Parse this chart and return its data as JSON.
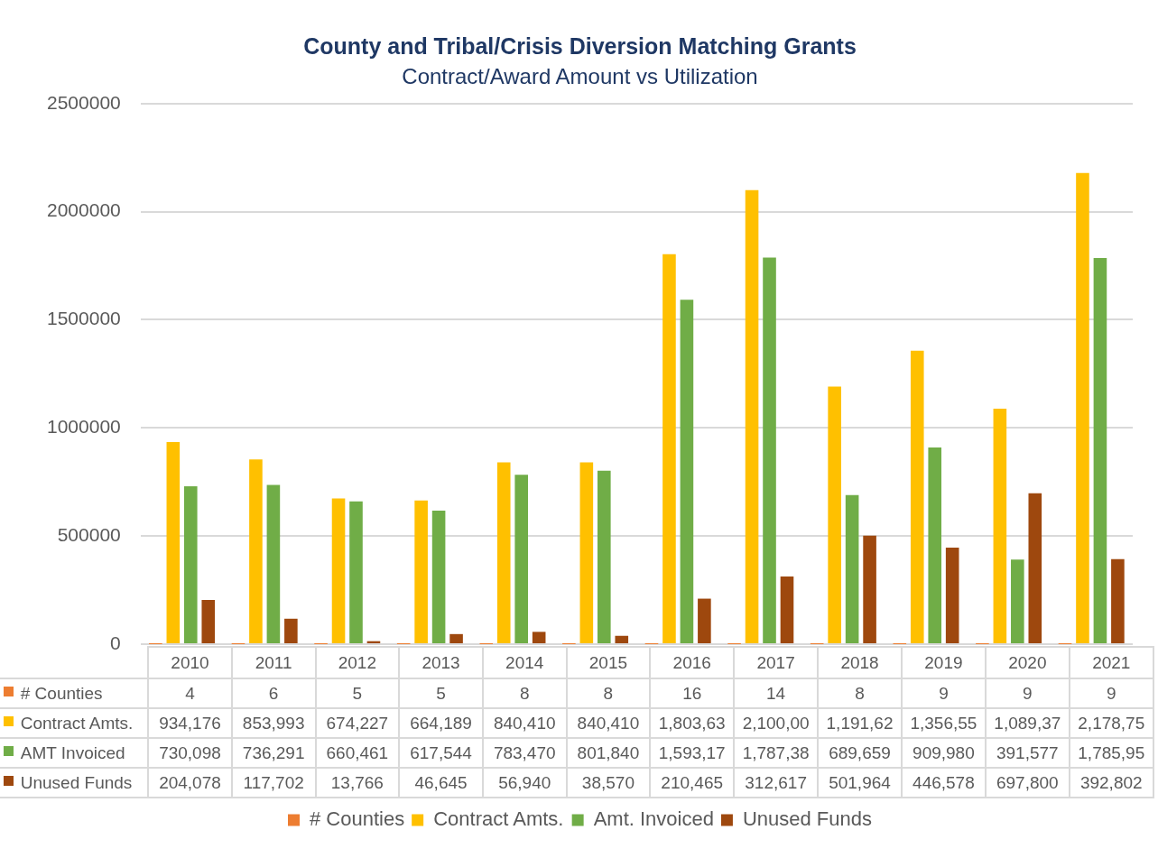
{
  "chart_data": {
    "type": "bar",
    "title": "County and Tribal/Crisis Diversion Matching Grants",
    "subtitle": "Contract/Award Amount vs Utilization",
    "categories": [
      "2010",
      "2011",
      "2012",
      "2013",
      "2014",
      "2015",
      "2016",
      "2017",
      "2018",
      "2019",
      "2020",
      "2021"
    ],
    "series": [
      {
        "name": "# Counties",
        "color": "#ed7d31",
        "values": [
          4,
          6,
          5,
          5,
          8,
          8,
          16,
          14,
          8,
          9,
          9,
          9
        ],
        "value_labels": [
          "4",
          "6",
          "5",
          "5",
          "8",
          "8",
          "16",
          "14",
          "8",
          "9",
          "9",
          "9"
        ]
      },
      {
        "name": "Contract Amts.",
        "color": "#ffc000",
        "values": [
          934176,
          853993,
          674227,
          664189,
          840410,
          840410,
          1803630,
          2100000,
          1191620,
          1356550,
          1089370,
          2178750
        ],
        "value_labels": [
          "934,176",
          "853,993",
          "674,227",
          "664,189",
          "840,410",
          "840,410",
          "1,803,63",
          "2,100,00",
          "1,191,62",
          "1,356,55",
          "1,089,37",
          "2,178,75"
        ]
      },
      {
        "name": "Amt. Invoiced",
        "color": "#70ad47",
        "values": [
          730098,
          736291,
          660461,
          617544,
          783470,
          801840,
          1593170,
          1787380,
          689659,
          909980,
          391577,
          1785950
        ],
        "value_labels": [
          "730,098",
          "736,291",
          "660,461",
          "617,544",
          "783,470",
          "801,840",
          "1,593,17",
          "1,787,38",
          "689,659",
          "909,980",
          "391,577",
          "1,785,95"
        ]
      },
      {
        "name": "Unused Funds",
        "color": "#9e480e",
        "values": [
          204078,
          117702,
          13766,
          46645,
          56940,
          38570,
          210465,
          312617,
          501964,
          446578,
          697800,
          392802
        ],
        "value_labels": [
          "204,078",
          "117,702",
          "13,766",
          "46,645",
          "56,940",
          "38,570",
          "210,465",
          "312,617",
          "501,964",
          "446,578",
          "697,800",
          "392,802"
        ]
      }
    ],
    "annotations": [
      "# Counties",
      "Contract Amts.",
      "AMT Invoiced",
      "Unused Funds"
    ],
    "ylim": [
      0,
      2500000
    ],
    "yticks": [
      0,
      500000,
      1000000,
      1500000,
      2000000,
      2500000
    ],
    "grid": "y",
    "legend": "bottom"
  }
}
